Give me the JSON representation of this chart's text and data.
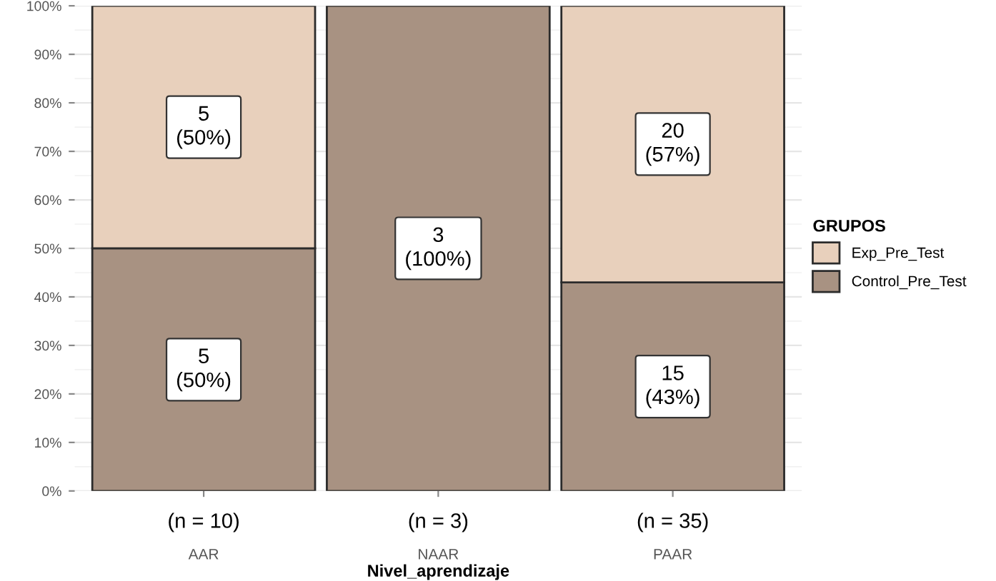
{
  "chart_data": {
    "type": "bar",
    "stacked": true,
    "xlabel": "Nivel_aprendizaje",
    "legend_title": "GRUPOS",
    "legend": "right",
    "categories": [
      "AAR",
      "NAAR",
      "PAAR"
    ],
    "series": [
      {
        "name": "Control_Pre_Test",
        "color": "#a89282",
        "values": [
          50,
          100,
          43
        ],
        "value_labels": [
          "5\n(50%)",
          "3\n(100%)",
          "15\n(43%)"
        ]
      },
      {
        "name": "Exp_Pre_Test",
        "color": "#e8d0bc",
        "values": [
          50,
          null,
          57
        ],
        "value_labels": [
          "5\n(50%)",
          null,
          "20\n(57%)"
        ]
      }
    ],
    "annotations": [
      "(n = 10)",
      "(n = 3)",
      "(n = 35)"
    ],
    "ylim": [
      0,
      100
    ],
    "yticks": [
      {
        "value": 0,
        "label": "0%"
      },
      {
        "value": 10,
        "label": "10%"
      },
      {
        "value": 20,
        "label": "20%"
      },
      {
        "value": 30,
        "label": "30%"
      },
      {
        "value": 40,
        "label": "40%"
      },
      {
        "value": 50,
        "label": "50%"
      },
      {
        "value": 60,
        "label": "60%"
      },
      {
        "value": 70,
        "label": "70%"
      },
      {
        "value": 80,
        "label": "80%"
      },
      {
        "value": 90,
        "label": "90%"
      },
      {
        "value": 100,
        "label": "100%"
      }
    ],
    "grid": "y"
  }
}
